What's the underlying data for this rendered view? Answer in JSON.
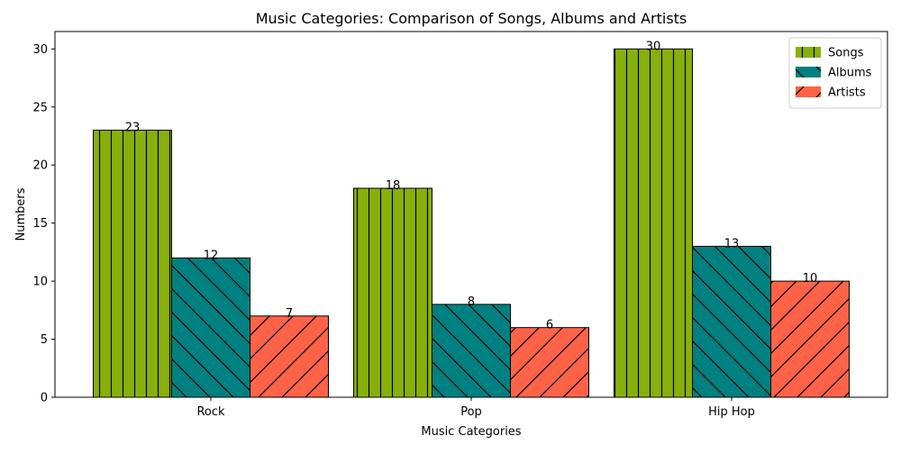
{
  "chart_data": {
    "type": "bar",
    "title": "Music Categories: Comparison of Songs, Albums and Artists",
    "xlabel": "Music Categories",
    "ylabel": "Numbers",
    "categories": [
      "Rock",
      "Pop",
      "Hip Hop"
    ],
    "series": [
      {
        "name": "Songs",
        "values": [
          23,
          18,
          30
        ],
        "color": "#88b00b",
        "hatch": "vertical"
      },
      {
        "name": "Albums",
        "values": [
          12,
          8,
          13
        ],
        "color": "#008080",
        "hatch": "backslash"
      },
      {
        "name": "Artists",
        "values": [
          7,
          6,
          10
        ],
        "color": "#ff6347",
        "hatch": "forward-slash"
      }
    ],
    "ylim": [
      0,
      31.5
    ],
    "yticks": [
      0,
      5,
      10,
      15,
      20,
      25,
      30
    ],
    "grid": false,
    "legend_position": "top-right"
  }
}
